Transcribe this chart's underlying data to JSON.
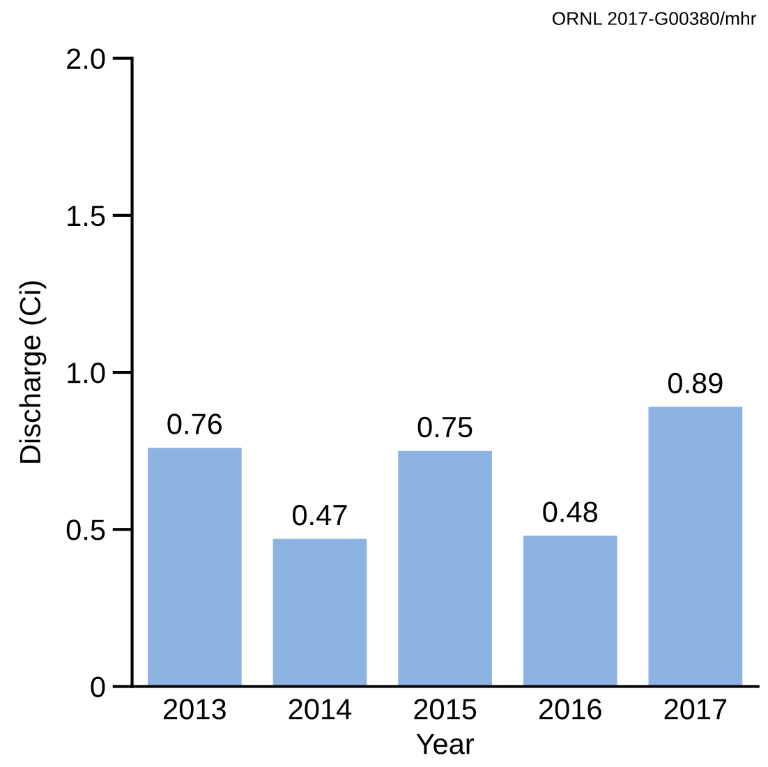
{
  "chart_data": {
    "type": "bar",
    "categories": [
      "2013",
      "2014",
      "2015",
      "2016",
      "2017"
    ],
    "values": [
      0.76,
      0.47,
      0.75,
      0.48,
      0.89
    ],
    "color": "#8db3e2",
    "xlabel": "Year",
    "ylabel": "Discharge (Ci)",
    "ylim": [
      0,
      2.0
    ],
    "yticks": [
      0,
      {
        "value": 0.5,
        "label": "0.5"
      },
      {
        "value": 1.0,
        "label": "1.0"
      },
      {
        "value": 1.5,
        "label": "1.5"
      },
      {
        "value": 2.0,
        "label": "2.0"
      }
    ],
    "data_labels": true,
    "grid": false,
    "annotations": [
      "ORNL 2017-G00380/mhr"
    ]
  }
}
